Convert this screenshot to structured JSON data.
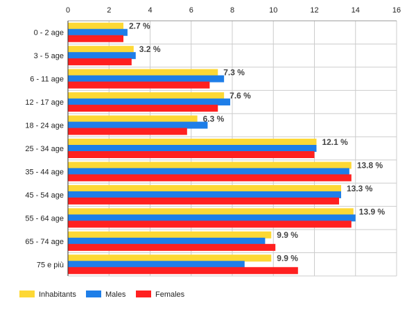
{
  "chart_data": {
    "type": "bar",
    "orientation": "horizontal",
    "categories": [
      "0 - 2 age",
      "3 - 5 age",
      "6 - 11 age",
      "12 - 17 age",
      "18 - 24 age",
      "25 - 34 age",
      "35 - 44 age",
      "45 - 54 age",
      "55 - 64 age",
      "65 - 74 age",
      "75 e più"
    ],
    "series": [
      {
        "name": "Inhabitants",
        "color": "#fdd835",
        "values": [
          2.7,
          3.2,
          7.3,
          7.6,
          6.3,
          12.1,
          13.8,
          13.3,
          13.9,
          9.9,
          9.9
        ]
      },
      {
        "name": "Males",
        "color": "#1e7ee8",
        "values": [
          2.9,
          3.3,
          7.6,
          7.9,
          6.8,
          12.1,
          13.7,
          13.3,
          14.0,
          9.6,
          8.6
        ]
      },
      {
        "name": "Females",
        "color": "#ff2020",
        "values": [
          2.7,
          3.1,
          6.9,
          7.3,
          5.8,
          12.0,
          13.8,
          13.2,
          13.8,
          10.1,
          11.2
        ]
      }
    ],
    "data_labels": [
      "2.7 %",
      "3.2 %",
      "7.3 %",
      "7.6 %",
      "6.3 %",
      "12.1 %",
      "13.8 %",
      "13.3 %",
      "13.9 %",
      "9.9 %",
      "9.9 %"
    ],
    "x_ticks": [
      "0",
      "2",
      "4",
      "6",
      "8",
      "10",
      "12",
      "14",
      "16"
    ],
    "xlim": [
      0,
      16
    ],
    "x_axis_position": "top",
    "grid": true,
    "legend_position": "bottom-left",
    "title": "",
    "xlabel": "",
    "ylabel": ""
  }
}
